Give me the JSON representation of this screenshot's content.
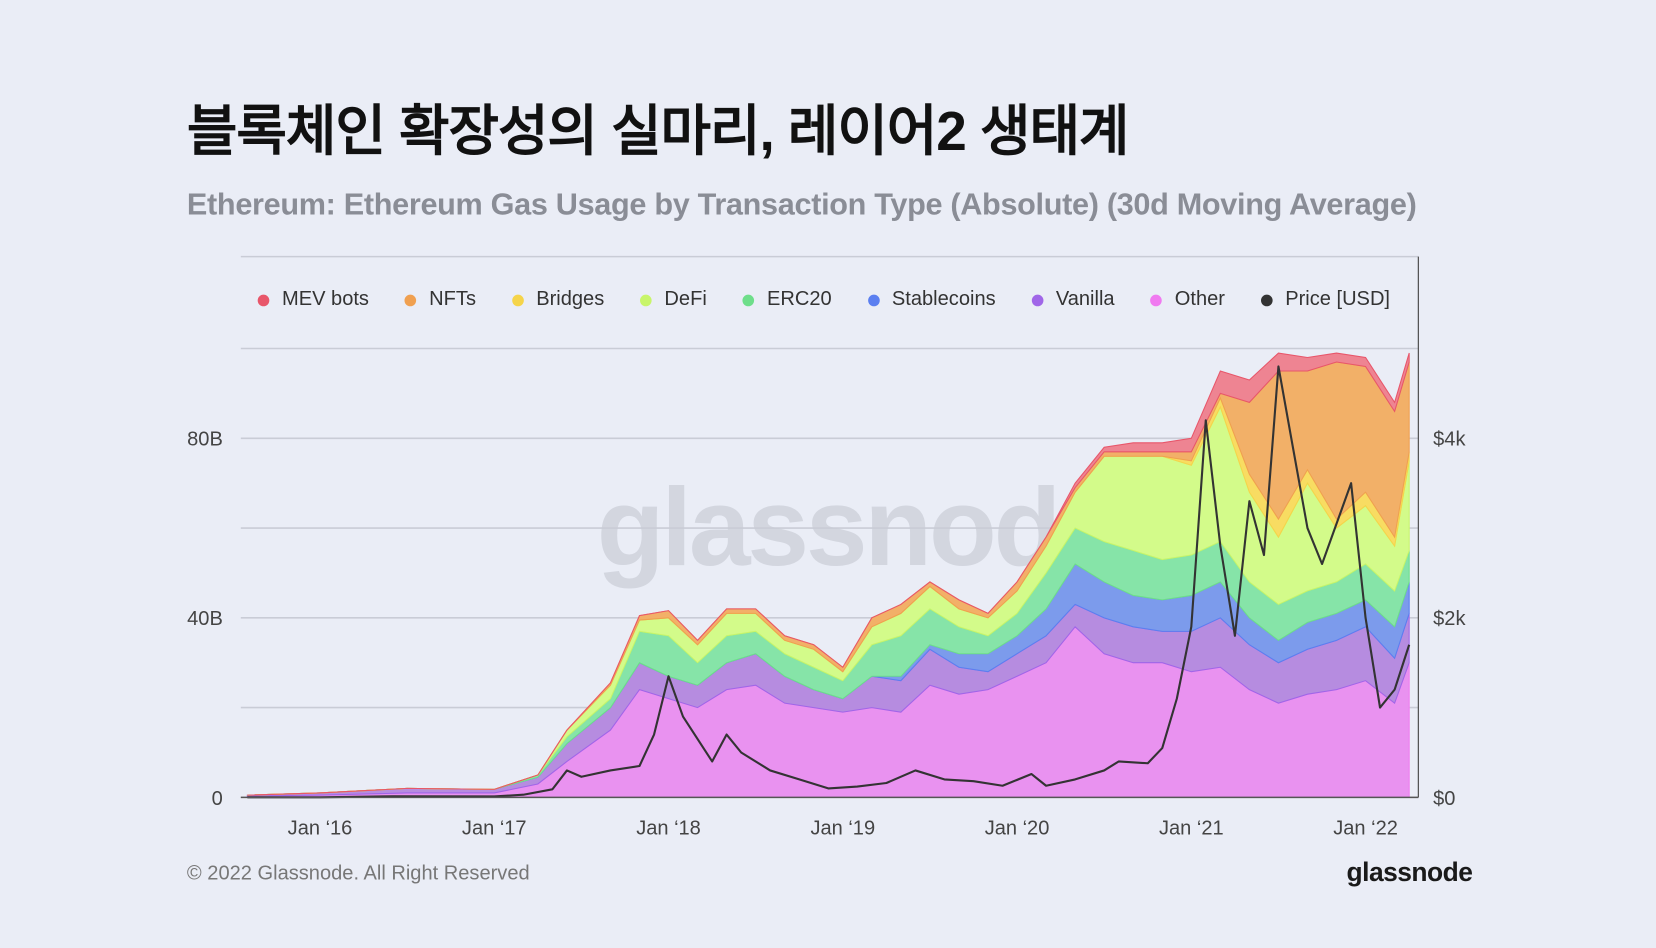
{
  "header": {
    "title": "블록체인 확장성의 실마리, 레이어2 생태계",
    "subtitle": "Ethereum: Ethereum Gas Usage by Transaction Type (Absolute) (30d Moving Average)"
  },
  "footer": {
    "copyright": "© 2022 Glassnode. All Right Reserved",
    "logo_text": "glassnode",
    "watermark_text": "glassnode"
  },
  "chart_data": {
    "type": "area",
    "stacked": true,
    "title": "Ethereum: Ethereum Gas Usage by Transaction Type (Absolute) (30d Moving Average)",
    "legend_placement": "top",
    "grid": true,
    "x_ticks": [
      "Jan ‘16",
      "Jan ‘17",
      "Jan ‘18",
      "Jan ‘19",
      "Jan ‘20",
      "Jan ‘21",
      "Jan ‘22"
    ],
    "y_left_ticks": [
      "0",
      "40B",
      "80B"
    ],
    "y_left_tick_values": [
      0,
      40,
      80
    ],
    "y_right_ticks": [
      "$0",
      "$2k",
      "$4k"
    ],
    "y_right_tick_values": [
      0,
      2000,
      4000
    ],
    "ylim_left": [
      0,
      100
    ],
    "ylim_right": [
      0,
      5000
    ],
    "xlim": [
      "2015-07",
      "2022-04"
    ],
    "x": [
      "2015-08",
      "2016-01",
      "2016-07",
      "2017-01",
      "2017-04",
      "2017-06",
      "2017-09",
      "2017-11",
      "2018-01",
      "2018-03",
      "2018-05",
      "2018-07",
      "2018-09",
      "2018-11",
      "2019-01",
      "2019-03",
      "2019-05",
      "2019-07",
      "2019-09",
      "2019-11",
      "2020-01",
      "2020-03",
      "2020-05",
      "2020-07",
      "2020-09",
      "2020-11",
      "2021-01",
      "2021-03",
      "2021-05",
      "2021-07",
      "2021-09",
      "2021-11",
      "2022-01",
      "2022-03",
      "2022-04"
    ],
    "series": [
      {
        "name": "Other",
        "color": "#f07af0",
        "fill": "#e992f0",
        "values": [
          0.3,
          0.5,
          1,
          1,
          3,
          8,
          15,
          24,
          22,
          20,
          24,
          25,
          21,
          20,
          19,
          20,
          19,
          25,
          23,
          24,
          27,
          30,
          38,
          32,
          30,
          30,
          28,
          29,
          24,
          21,
          23,
          24,
          26,
          21,
          30
        ]
      },
      {
        "name": "Vanilla",
        "color": "#a066e8",
        "fill": "#b68ce0",
        "values": [
          0.2,
          0.5,
          1,
          0.8,
          1.5,
          4,
          5,
          6,
          5,
          5,
          6,
          7,
          6,
          4,
          3,
          7,
          7,
          8,
          6,
          4,
          5,
          6,
          5,
          8,
          8,
          7,
          9,
          11,
          10,
          9,
          10,
          11,
          12,
          10,
          11
        ]
      },
      {
        "name": "Stablecoins",
        "color": "#5b7ff0",
        "fill": "#7c9bec",
        "values": [
          0,
          0,
          0,
          0,
          0,
          0,
          0,
          0,
          0,
          0,
          0,
          0,
          0,
          0,
          0,
          0,
          1,
          1,
          3,
          4,
          4,
          6,
          9,
          8,
          7,
          7,
          8,
          8,
          6,
          5,
          6,
          6,
          6,
          7,
          7
        ]
      },
      {
        "name": "ERC20",
        "color": "#6ede8a",
        "fill": "#86e4a8",
        "values": [
          0,
          0,
          0,
          0,
          0.5,
          1.5,
          2,
          7,
          9,
          5,
          6,
          5,
          5,
          5,
          4,
          7,
          9,
          8,
          6,
          4,
          5,
          8,
          8,
          9,
          10,
          9,
          9,
          9,
          8,
          8,
          7,
          7,
          8,
          8,
          7
        ]
      },
      {
        "name": "DeFi",
        "color": "#c8f56a",
        "fill": "#d3fb8a",
        "values": [
          0,
          0,
          0,
          0,
          0,
          1.5,
          3,
          2.5,
          4,
          4,
          5,
          4,
          3,
          4,
          2,
          4,
          5,
          5,
          4,
          4,
          5,
          6,
          8,
          19,
          21,
          23,
          20,
          30,
          20,
          15,
          24,
          12,
          13,
          10,
          20
        ]
      },
      {
        "name": "Bridges",
        "color": "#f5d44a",
        "fill": "#f8dc62",
        "values": [
          0,
          0,
          0,
          0,
          0,
          0,
          0,
          0,
          0,
          0,
          0,
          0,
          0,
          0,
          0,
          0,
          0,
          0,
          0,
          0,
          0,
          0,
          0,
          0,
          0,
          0,
          1,
          2,
          4,
          4,
          3,
          2,
          3,
          2,
          2
        ]
      },
      {
        "name": "NFTs",
        "color": "#f0a050",
        "fill": "#f2b068",
        "values": [
          0,
          0,
          0,
          0,
          0,
          0,
          0.5,
          1,
          1.6,
          1,
          1,
          1,
          1,
          1,
          1,
          2,
          2,
          1,
          2,
          1,
          2,
          2,
          1,
          1,
          1,
          1,
          2,
          1,
          16,
          33,
          22,
          35,
          28,
          28,
          20
        ]
      },
      {
        "name": "MEV bots",
        "color": "#e8566a",
        "fill": "#ee8492",
        "values": [
          0,
          0,
          0,
          0,
          0,
          0,
          0,
          0,
          0,
          0,
          0,
          0,
          0,
          0,
          0,
          0,
          0,
          0,
          0,
          0,
          0,
          0,
          1,
          1,
          2,
          2,
          3,
          5,
          5,
          4,
          3,
          2,
          2,
          2,
          2
        ]
      }
    ],
    "legend": [
      {
        "name": "MEV bots",
        "color": "#e8566a"
      },
      {
        "name": "NFTs",
        "color": "#f0a050"
      },
      {
        "name": "Bridges",
        "color": "#f5d44a"
      },
      {
        "name": "DeFi",
        "color": "#c8f56a"
      },
      {
        "name": "ERC20",
        "color": "#6ede8a"
      },
      {
        "name": "Stablecoins",
        "color": "#5b7ff0"
      },
      {
        "name": "Vanilla",
        "color": "#a066e8"
      },
      {
        "name": "Other",
        "color": "#f07af0"
      },
      {
        "name": "Price [USD]",
        "color": "#333333"
      }
    ],
    "price": {
      "name": "Price [USD]",
      "color": "#333333",
      "axis": "right",
      "points": [
        [
          "2015-08",
          1
        ],
        [
          "2016-01",
          1
        ],
        [
          "2016-06",
          12
        ],
        [
          "2017-01",
          10
        ],
        [
          "2017-03",
          30
        ],
        [
          "2017-05",
          90
        ],
        [
          "2017-06",
          300
        ],
        [
          "2017-07",
          230
        ],
        [
          "2017-09",
          300
        ],
        [
          "2017-11",
          350
        ],
        [
          "2017-12",
          700
        ],
        [
          "2018-01",
          1350
        ],
        [
          "2018-02",
          900
        ],
        [
          "2018-04",
          400
        ],
        [
          "2018-05",
          700
        ],
        [
          "2018-06",
          500
        ],
        [
          "2018-08",
          300
        ],
        [
          "2018-10",
          200
        ],
        [
          "2018-12",
          100
        ],
        [
          "2019-02",
          120
        ],
        [
          "2019-04",
          160
        ],
        [
          "2019-06",
          300
        ],
        [
          "2019-08",
          200
        ],
        [
          "2019-10",
          180
        ],
        [
          "2019-12",
          130
        ],
        [
          "2020-02",
          260
        ],
        [
          "2020-03",
          130
        ],
        [
          "2020-05",
          200
        ],
        [
          "2020-07",
          300
        ],
        [
          "2020-08",
          400
        ],
        [
          "2020-10",
          380
        ],
        [
          "2020-11",
          550
        ],
        [
          "2020-12",
          1100
        ],
        [
          "2021-01",
          1900
        ],
        [
          "2021-02",
          4200
        ],
        [
          "2021-03",
          2800
        ],
        [
          "2021-04",
          1800
        ],
        [
          "2021-05",
          3300
        ],
        [
          "2021-06",
          2700
        ],
        [
          "2021-07",
          4800
        ],
        [
          "2021-08",
          3900
        ],
        [
          "2021-09",
          3000
        ],
        [
          "2021-10",
          2600
        ],
        [
          "2021-12",
          3500
        ],
        [
          "2022-01",
          2000
        ],
        [
          "2022-02",
          1000
        ],
        [
          "2022-03",
          1200
        ],
        [
          "2022-04",
          1700
        ]
      ]
    }
  }
}
